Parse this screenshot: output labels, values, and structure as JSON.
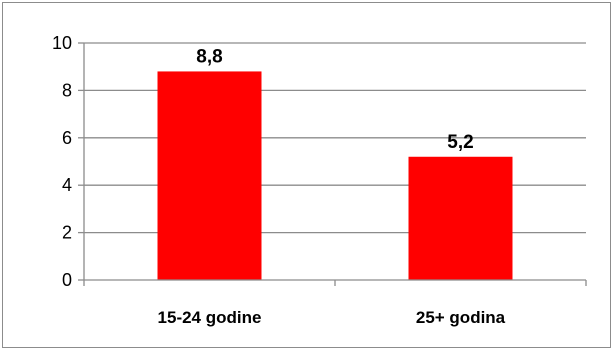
{
  "chart_data": {
    "type": "bar",
    "categories": [
      "15-24 godine",
      "25+ godina"
    ],
    "values": [
      8.8,
      5.2
    ],
    "data_labels": [
      "8,8",
      "5,2"
    ],
    "ylim": [
      0,
      10
    ],
    "yticks": [
      0,
      2,
      4,
      6,
      8,
      10
    ],
    "ytick_labels": [
      "0",
      "2",
      "4",
      "6",
      "8",
      "10"
    ],
    "grid": true,
    "legend": false,
    "bar_color": "#ff0000",
    "title": "",
    "xlabel": "",
    "ylabel": ""
  }
}
